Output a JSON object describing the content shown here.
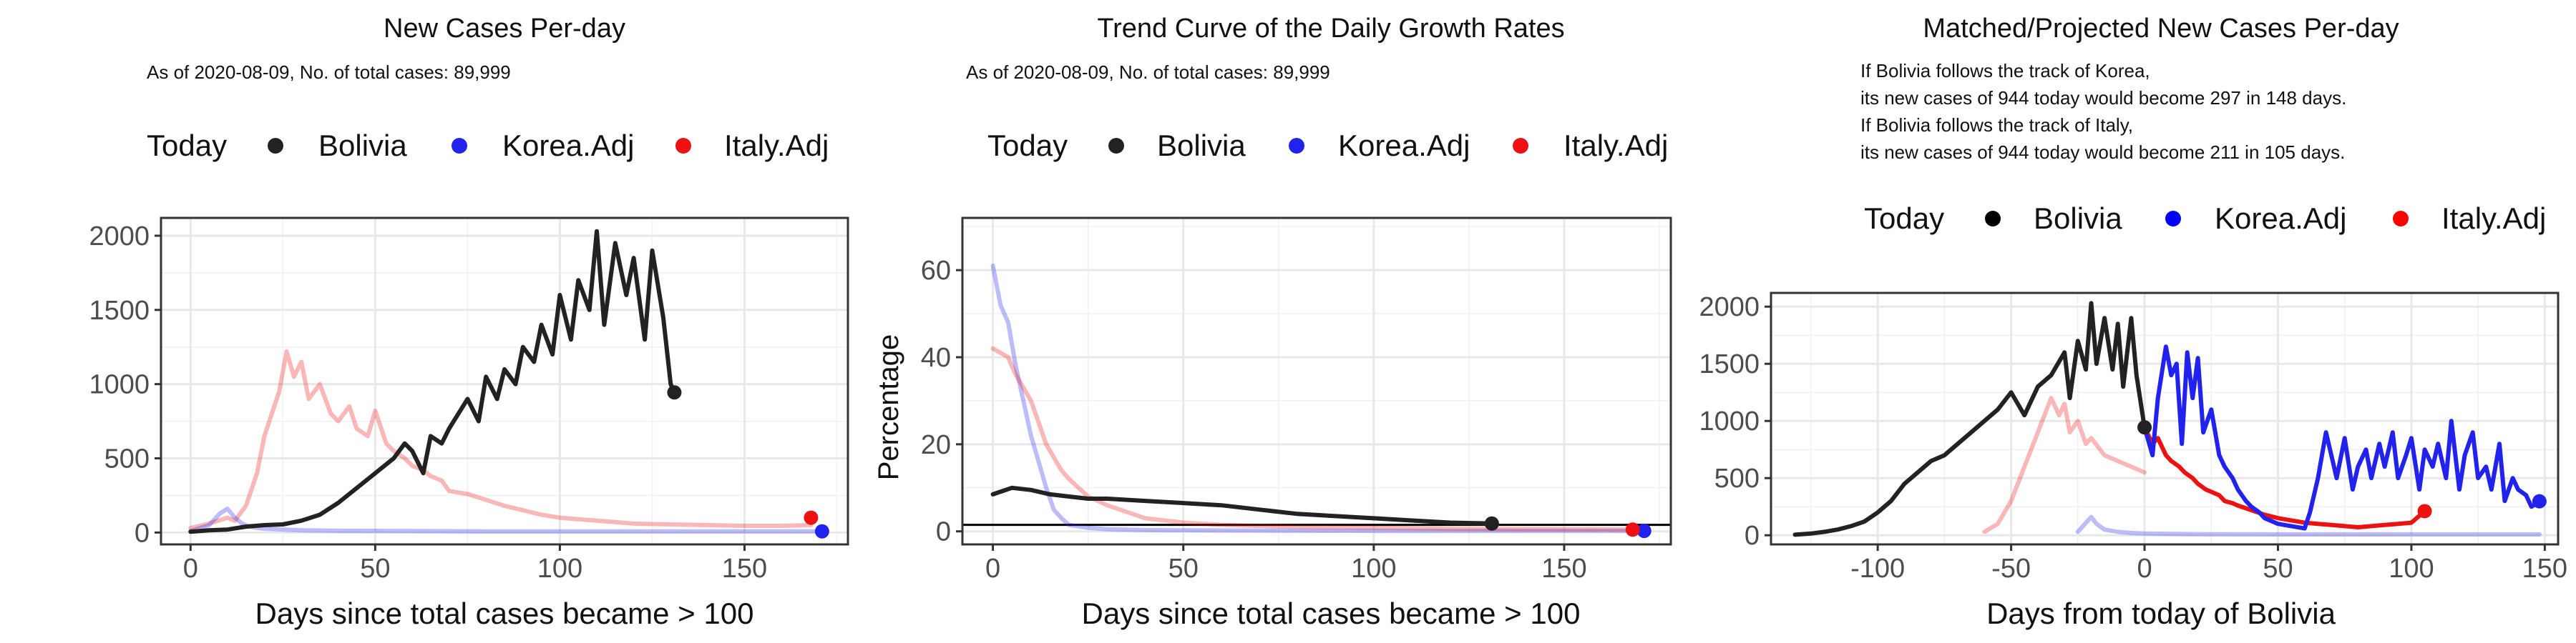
{
  "colors": {
    "bolivia": "#222222",
    "korea": "#2222ee",
    "italy": "#ee1111",
    "grid": "#e8e8e8",
    "frame": "#333333"
  },
  "legend_labels": {
    "today": "Today",
    "bolivia": "Bolivia",
    "korea": "Korea.Adj",
    "italy": "Italy.Adj"
  },
  "chart_data": [
    {
      "type": "line",
      "title": "New Cases Per-day",
      "subtitle": "As of 2020-08-09, No. of total cases: 89,999",
      "xlabel": "Days since total cases became > 100",
      "ylabel": "",
      "xlim": [
        -8,
        178
      ],
      "ylim": [
        -80,
        2120
      ],
      "xticks": [
        0,
        50,
        100,
        150
      ],
      "yticks": [
        0,
        500,
        1000,
        1500,
        2000
      ],
      "grid": true,
      "legend": "top",
      "series": [
        {
          "name": "Italy.Adj",
          "color": "#ee1111",
          "alpha": 0.3,
          "x": [
            0,
            5,
            10,
            12,
            15,
            18,
            20,
            22,
            24,
            26,
            28,
            30,
            32,
            35,
            38,
            40,
            43,
            45,
            48,
            50,
            53,
            55,
            58,
            60,
            63,
            65,
            68,
            70,
            75,
            80,
            85,
            90,
            95,
            100,
            105,
            110,
            115,
            120,
            130,
            140,
            150,
            160,
            168
          ],
          "y": [
            30,
            60,
            100,
            80,
            180,
            400,
            650,
            800,
            950,
            1220,
            1050,
            1150,
            900,
            1000,
            800,
            750,
            850,
            700,
            650,
            820,
            600,
            550,
            500,
            450,
            420,
            380,
            350,
            280,
            260,
            220,
            180,
            150,
            120,
            100,
            90,
            80,
            70,
            60,
            55,
            50,
            45,
            45,
            50
          ],
          "end_point": {
            "x": 168,
            "y": 100
          }
        },
        {
          "name": "Korea.Adj",
          "color": "#2222ee",
          "alpha": 0.3,
          "x": [
            0,
            5,
            8,
            10,
            12,
            14,
            16,
            18,
            20,
            25,
            30,
            40,
            60,
            80,
            100,
            120,
            140,
            160,
            171
          ],
          "y": [
            10,
            50,
            130,
            160,
            100,
            60,
            40,
            30,
            25,
            20,
            15,
            12,
            10,
            8,
            8,
            8,
            8,
            8,
            8
          ],
          "end_point": {
            "x": 171,
            "y": 8
          }
        },
        {
          "name": "Bolivia",
          "color": "#222222",
          "alpha": 1,
          "x": [
            0,
            5,
            10,
            15,
            20,
            25,
            30,
            35,
            40,
            45,
            50,
            55,
            58,
            60,
            63,
            65,
            68,
            70,
            75,
            78,
            80,
            83,
            85,
            88,
            90,
            93,
            95,
            98,
            100,
            103,
            105,
            108,
            110,
            112,
            115,
            118,
            120,
            123,
            125,
            128,
            130,
            131
          ],
          "y": [
            5,
            15,
            20,
            40,
            50,
            55,
            80,
            120,
            200,
            300,
            400,
            500,
            600,
            550,
            400,
            650,
            600,
            700,
            900,
            750,
            1050,
            900,
            1100,
            1000,
            1250,
            1150,
            1400,
            1200,
            1600,
            1300,
            1700,
            1500,
            2030,
            1400,
            1950,
            1600,
            1850,
            1300,
            1900,
            1450,
            1000,
            944
          ],
          "end_point": {
            "x": 131,
            "y": 944
          }
        }
      ]
    },
    {
      "type": "line",
      "title": "Trend Curve of the Daily Growth Rates",
      "subtitle": "As of 2020-08-09, No. of total cases: 89,999",
      "xlabel": "Days since total cases became > 100",
      "ylabel": "Percentage",
      "xlim": [
        -8,
        178
      ],
      "ylim": [
        -3,
        72
      ],
      "xticks": [
        0,
        50,
        100,
        150
      ],
      "yticks": [
        0,
        20,
        40,
        60
      ],
      "hline": 1.5,
      "grid": true,
      "legend": "top",
      "series": [
        {
          "name": "Korea.Adj",
          "color": "#2222ee",
          "alpha": 0.3,
          "x": [
            0,
            2,
            4,
            6,
            8,
            10,
            12,
            14,
            16,
            18,
            20,
            25,
            30,
            40,
            60,
            100,
            140,
            171
          ],
          "y": [
            61,
            52,
            48,
            38,
            30,
            22,
            16,
            10,
            5,
            3,
            1.5,
            0.8,
            0.5,
            0.3,
            0.2,
            0.1,
            0.1,
            0.1
          ],
          "end_point": {
            "x": 171,
            "y": 0.1
          }
        },
        {
          "name": "Italy.Adj",
          "color": "#ee1111",
          "alpha": 0.3,
          "x": [
            0,
            2,
            4,
            6,
            8,
            10,
            12,
            14,
            16,
            18,
            20,
            25,
            30,
            35,
            40,
            50,
            60,
            80,
            100,
            120,
            140,
            168
          ],
          "y": [
            42,
            41,
            40,
            36,
            33,
            30,
            25,
            20,
            17,
            14,
            12,
            8,
            6,
            4.5,
            3,
            2,
            1.5,
            1,
            0.8,
            0.6,
            0.5,
            0.4
          ],
          "end_point": {
            "x": 168,
            "y": 0.4
          }
        },
        {
          "name": "Bolivia",
          "color": "#222222",
          "alpha": 1,
          "x": [
            0,
            5,
            10,
            15,
            20,
            25,
            30,
            40,
            50,
            60,
            70,
            80,
            90,
            100,
            110,
            120,
            131
          ],
          "y": [
            8.5,
            10,
            9.5,
            8.5,
            8,
            7.5,
            7.5,
            7,
            6.5,
            6,
            5,
            4,
            3.5,
            3,
            2.5,
            2,
            1.8
          ],
          "end_point": {
            "x": 131,
            "y": 1.8
          }
        }
      ]
    },
    {
      "type": "line",
      "title": "Matched/Projected New Cases Per-day",
      "annotation": [
        "If Bolivia follows the track of Korea,",
        "its new cases of 944 today would become 297 in 148 days.",
        "If Bolivia follows the track of Italy,",
        "its new cases of 944 today would become 211 in 105 days."
      ],
      "xlabel": "Days from today of Bolivia",
      "ylabel": "",
      "xlim": [
        -140,
        155
      ],
      "ylim": [
        -80,
        2120
      ],
      "xticks": [
        -100,
        -50,
        0,
        50,
        100,
        150
      ],
      "yticks": [
        0,
        500,
        1000,
        1500,
        2000
      ],
      "grid": true,
      "legend": "top",
      "series": [
        {
          "name": "Bolivia",
          "color": "#222222",
          "alpha": 1,
          "x": [
            -131,
            -125,
            -120,
            -115,
            -110,
            -105,
            -100,
            -95,
            -90,
            -85,
            -80,
            -75,
            -70,
            -65,
            -60,
            -55,
            -50,
            -45,
            -40,
            -35,
            -30,
            -28,
            -25,
            -22,
            -20,
            -18,
            -15,
            -12,
            -10,
            -8,
            -5,
            -3,
            0
          ],
          "y": [
            5,
            15,
            30,
            50,
            80,
            120,
            200,
            300,
            450,
            550,
            650,
            700,
            800,
            900,
            1000,
            1100,
            1250,
            1050,
            1300,
            1400,
            1600,
            1200,
            1700,
            1450,
            2030,
            1500,
            1900,
            1450,
            1850,
            1300,
            1900,
            1400,
            944
          ],
          "end_point": {
            "x": 0,
            "y": 944
          }
        },
        {
          "name": "Italy.Adj",
          "color": "#ee1111",
          "alpha": 0.3,
          "x": [
            -60,
            -55,
            -50,
            -45,
            -40,
            -35,
            -32,
            -30,
            -28,
            -25,
            -22,
            -20,
            -15,
            -10,
            -5,
            0
          ],
          "y": [
            30,
            100,
            300,
            600,
            900,
            1200,
            1050,
            1150,
            900,
            1000,
            800,
            850,
            700,
            650,
            600,
            550
          ],
          "end_point": null
        },
        {
          "name": "Korea.Adj",
          "color": "#2222ee",
          "alpha": 0.3,
          "x": [
            -25,
            -20,
            -18,
            -15,
            -10,
            -5,
            0,
            20,
            50,
            100,
            148
          ],
          "y": [
            30,
            160,
            100,
            50,
            30,
            20,
            15,
            10,
            8,
            8,
            8
          ],
          "end_point": null
        },
        {
          "name": "Italy.Adj (projected)",
          "color": "#ee1111",
          "alpha": 1,
          "x": [
            0,
            3,
            5,
            8,
            10,
            13,
            15,
            18,
            20,
            23,
            25,
            28,
            30,
            33,
            35,
            40,
            45,
            50,
            55,
            60,
            65,
            70,
            75,
            80,
            85,
            90,
            95,
            100,
            105
          ],
          "y": [
            944,
            800,
            850,
            700,
            650,
            600,
            550,
            500,
            450,
            400,
            380,
            350,
            300,
            280,
            260,
            220,
            180,
            150,
            130,
            110,
            100,
            90,
            80,
            70,
            80,
            90,
            100,
            110,
            211
          ],
          "end_point": {
            "x": 105,
            "y": 211
          }
        },
        {
          "name": "Korea.Adj (projected)",
          "color": "#2222ee",
          "alpha": 1,
          "x": [
            0,
            3,
            5,
            8,
            10,
            12,
            14,
            16,
            18,
            20,
            22,
            25,
            28,
            30,
            33,
            35,
            38,
            40,
            43,
            45,
            48,
            50,
            55,
            60,
            62,
            65,
            68,
            70,
            72,
            75,
            78,
            80,
            83,
            85,
            88,
            90,
            93,
            95,
            98,
            100,
            103,
            105,
            108,
            110,
            113,
            115,
            118,
            120,
            123,
            125,
            128,
            130,
            133,
            135,
            138,
            140,
            143,
            145,
            148
          ],
          "y": [
            944,
            700,
            1200,
            1650,
            1400,
            1500,
            800,
            1600,
            1200,
            1550,
            900,
            1100,
            700,
            600,
            500,
            400,
            300,
            250,
            200,
            150,
            120,
            100,
            80,
            60,
            200,
            500,
            900,
            700,
            500,
            850,
            400,
            600,
            750,
            500,
            800,
            600,
            900,
            500,
            700,
            850,
            400,
            750,
            600,
            800,
            500,
            1000,
            400,
            700,
            900,
            500,
            600,
            400,
            800,
            300,
            500,
            400,
            350,
            250,
            297
          ],
          "end_point": {
            "x": 148,
            "y": 297
          }
        }
      ]
    }
  ]
}
